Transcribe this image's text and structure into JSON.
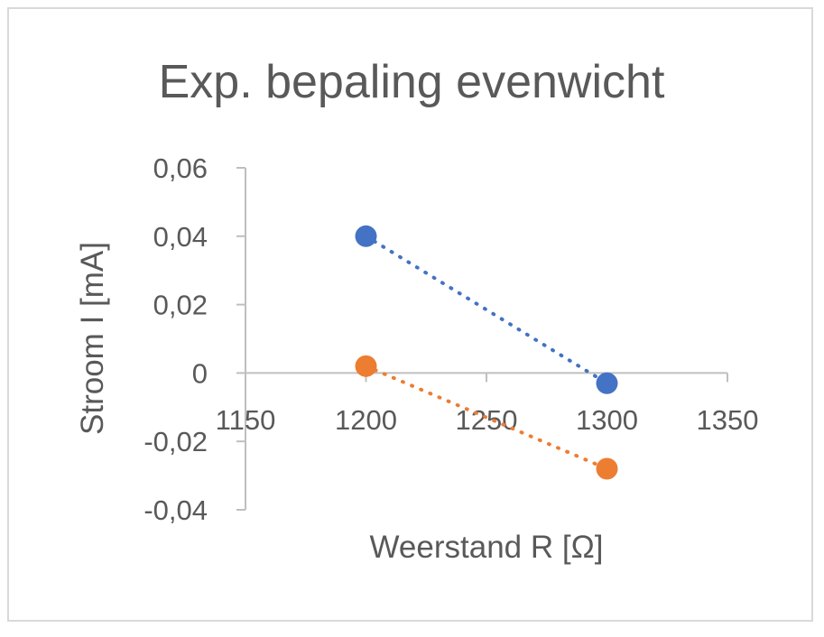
{
  "chart_data": {
    "type": "scatter",
    "title": "Exp. bepaling evenwicht",
    "xlabel": "Weerstand R [Ω]",
    "ylabel": "Stroom I [mA]",
    "xlim": [
      1150,
      1350
    ],
    "ylim": [
      -0.04,
      0.06
    ],
    "x_ticks": [
      1150,
      1200,
      1250,
      1300,
      1350
    ],
    "y_ticks": [
      -0.04,
      -0.02,
      0,
      0.02,
      0.04,
      0.06
    ],
    "x_tick_labels": [
      "1150",
      "1200",
      "1250",
      "1300",
      "1350"
    ],
    "y_tick_labels": [
      "-0,04",
      "-0,02",
      "0",
      "0,02",
      "0,04",
      "0,06"
    ],
    "grid": false,
    "legend": "none",
    "trendline": "linear, dotted",
    "series": [
      {
        "color": "#4472c4",
        "x": [
          1200,
          1300
        ],
        "y": [
          0.04,
          -0.003
        ]
      },
      {
        "color": "#ed7d31",
        "x": [
          1200,
          1300
        ],
        "y": [
          0.002,
          -0.028
        ]
      }
    ]
  },
  "colors": {
    "axis": "#bfbfbf",
    "text": "#595959",
    "border": "#d9d9d9"
  }
}
